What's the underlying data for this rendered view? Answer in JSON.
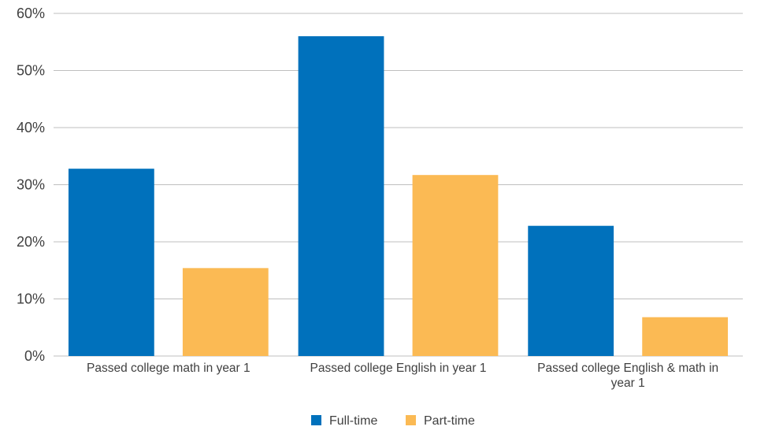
{
  "chart_data": {
    "type": "bar",
    "categories": [
      [
        "Passed college math in year 1"
      ],
      [
        "Passed college English in year 1"
      ],
      [
        "Passed college English & math in",
        "year 1"
      ]
    ],
    "series": [
      {
        "name": "Full-time",
        "color": "#0071BC",
        "values": [
          32.8,
          56.0,
          22.8
        ]
      },
      {
        "name": "Part-time",
        "color": "#FBBA54",
        "values": [
          15.4,
          31.7,
          6.8
        ]
      }
    ],
    "yticks": [
      "0%",
      "10%",
      "20%",
      "30%",
      "40%",
      "50%",
      "60%"
    ],
    "ylim": [
      0,
      60
    ],
    "grid": true,
    "legend_position": "bottom-center",
    "gridline_color": "#bfbfbf"
  }
}
